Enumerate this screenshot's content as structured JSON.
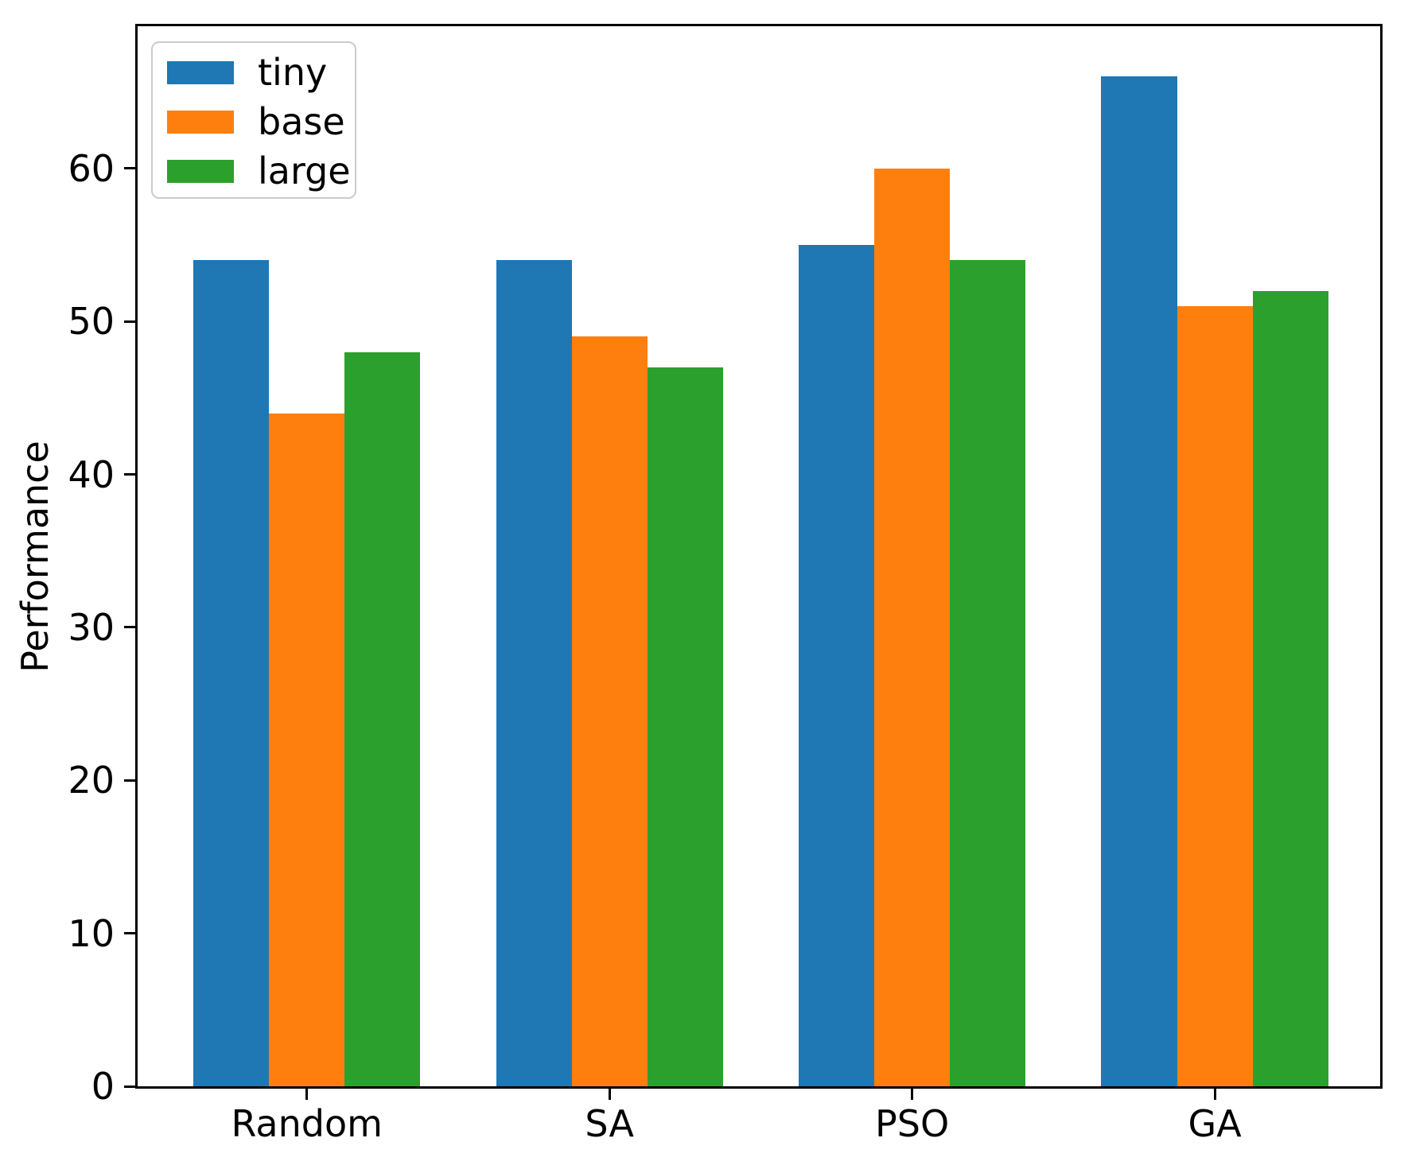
{
  "chart_data": {
    "type": "bar",
    "title": "",
    "xlabel": "",
    "ylabel": "Performance",
    "categories": [
      "Random",
      "SA",
      "PSO",
      "GA"
    ],
    "series": [
      {
        "name": "tiny",
        "color": "#1f77b4",
        "values": [
          54,
          54,
          55,
          66
        ]
      },
      {
        "name": "base",
        "color": "#ff7f0e",
        "values": [
          44,
          49,
          60,
          51
        ]
      },
      {
        "name": "large",
        "color": "#2ca02c",
        "values": [
          48,
          47,
          54,
          52
        ]
      }
    ],
    "ylim": [
      0,
      69.3
    ],
    "yticks": [
      0,
      10,
      20,
      30,
      40,
      50,
      60
    ],
    "grid": false,
    "legend_position": "upper left",
    "bar_width": 0.25,
    "background": "#ffffff",
    "spine_color": "#000000"
  }
}
